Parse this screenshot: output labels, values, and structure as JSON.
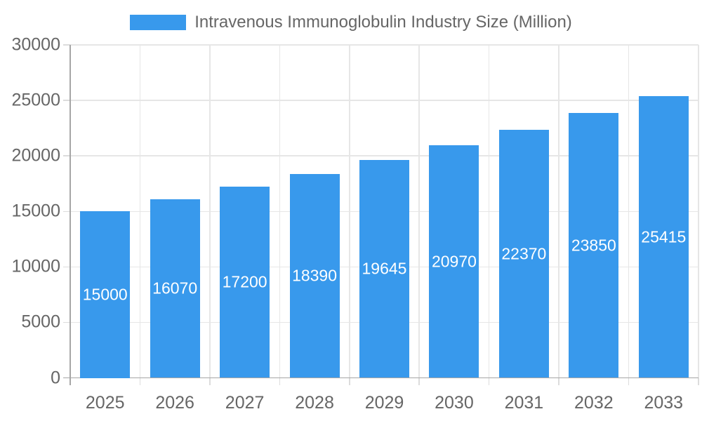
{
  "chart_data": {
    "type": "bar",
    "title": "Intravenous Immunoglobulin Industry Size (Million)",
    "legend": {
      "position": "top",
      "entries": [
        {
          "label": "Intravenous Immunoglobulin Industry Size (Million)",
          "color": "#3899EC"
        }
      ]
    },
    "categories": [
      "2025",
      "2026",
      "2027",
      "2028",
      "2029",
      "2030",
      "2031",
      "2032",
      "2033"
    ],
    "series": [
      {
        "name": "Intravenous Immunoglobulin Industry Size (Million)",
        "values": [
          15000,
          16070,
          17200,
          18390,
          19645,
          20970,
          22370,
          23850,
          25415
        ]
      }
    ],
    "value_labels": [
      "15000",
      "16070",
      "17200",
      "18390",
      "19645",
      "20970",
      "22370",
      "23850",
      "25415"
    ],
    "value_label_placement": "inside-center",
    "xlabel": "",
    "ylabel": "",
    "ylim": [
      0,
      30000
    ],
    "ytick_step": 5000,
    "ytick_labels": [
      "0",
      "5000",
      "10000",
      "15000",
      "20000",
      "25000",
      "30000"
    ],
    "grid": true,
    "colors": {
      "bar": "#3899EC",
      "axis_text": "#666666",
      "value_label_text": "#FFFFFF",
      "grid_line": "#E6E6E6",
      "tick_line": "#DCDCDC",
      "axis_line": "#A6A6A6",
      "background": "#FFFFFF"
    }
  }
}
